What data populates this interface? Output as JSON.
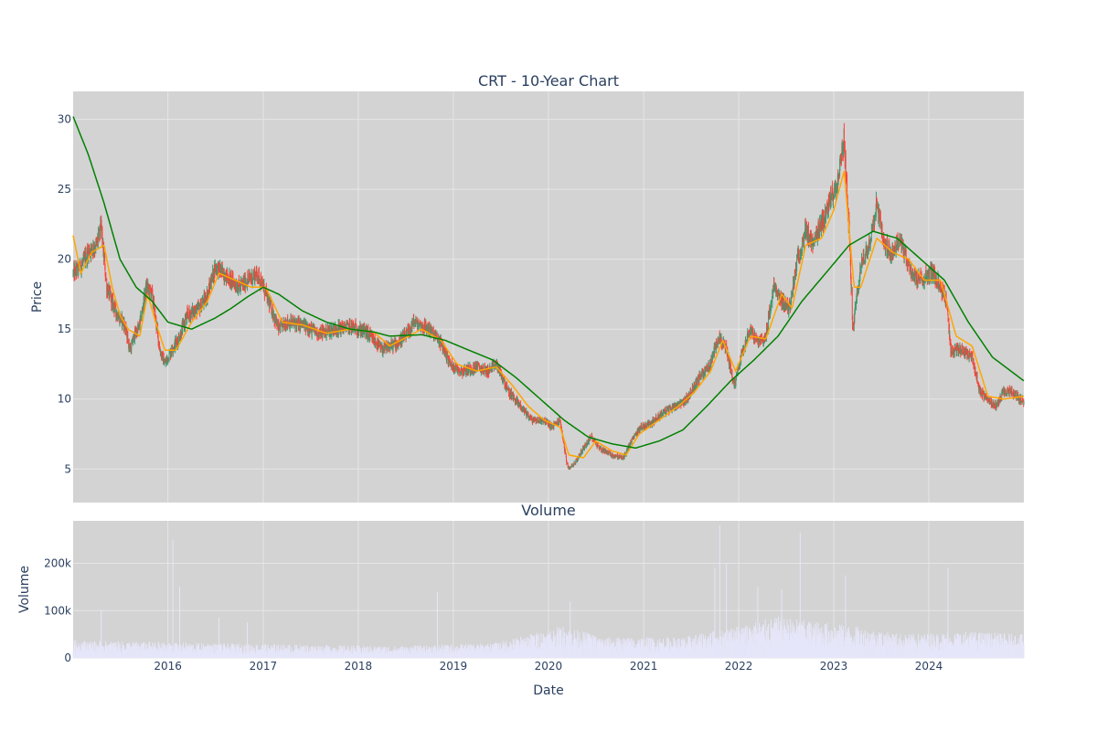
{
  "chart_data": [
    {
      "type": "candlestick",
      "title": "CRT - 10-Year Chart",
      "ylabel": "Price",
      "ylim": [
        2.6,
        32.0
      ],
      "xlim": [
        "2015-01-02",
        "2024-12-31"
      ],
      "yticks": [
        5,
        10,
        15,
        20,
        25,
        30
      ],
      "xticks": [
        "2016",
        "2017",
        "2018",
        "2019",
        "2020",
        "2021",
        "2022",
        "2023",
        "2024"
      ],
      "grid": true,
      "colors": {
        "background": "#d3d3d3",
        "grid": "#e6e6e6",
        "increasing": "#3d9970",
        "decreasing": "#ff4136",
        "ma_short": "#ffa500",
        "ma_long": "#008000"
      },
      "close_anchors": [
        [
          "2015-01-02",
          19.0
        ],
        [
          "2015-02-01",
          19.5
        ],
        [
          "2015-03-01",
          20.5
        ],
        [
          "2015-04-01",
          21.0
        ],
        [
          "2015-04-20",
          22.3
        ],
        [
          "2015-05-10",
          18.0
        ],
        [
          "2015-06-01",
          17.0
        ],
        [
          "2015-06-20",
          16.0
        ],
        [
          "2015-07-15",
          15.5
        ],
        [
          "2015-08-10",
          13.5
        ],
        [
          "2015-08-25",
          14.5
        ],
        [
          "2015-09-15",
          15.3
        ],
        [
          "2015-10-10",
          18.0
        ],
        [
          "2015-11-01",
          17.5
        ],
        [
          "2015-12-01",
          13.5
        ],
        [
          "2015-12-20",
          12.5
        ],
        [
          "2016-01-15",
          13.5
        ],
        [
          "2016-02-15",
          14.5
        ],
        [
          "2016-03-15",
          16.0
        ],
        [
          "2016-05-01",
          16.5
        ],
        [
          "2016-06-01",
          17.5
        ],
        [
          "2016-07-01",
          19.5
        ],
        [
          "2016-08-01",
          19.0
        ],
        [
          "2016-09-01",
          18.5
        ],
        [
          "2016-10-01",
          18.0
        ],
        [
          "2016-11-01",
          18.5
        ],
        [
          "2016-12-10",
          19.0
        ],
        [
          "2017-01-01",
          18.0
        ],
        [
          "2017-02-01",
          16.5
        ],
        [
          "2017-03-01",
          15.0
        ],
        [
          "2017-04-01",
          15.5
        ],
        [
          "2017-06-01",
          15.3
        ],
        [
          "2017-08-01",
          14.7
        ],
        [
          "2017-10-01",
          15.0
        ],
        [
          "2017-12-01",
          15.2
        ],
        [
          "2018-02-01",
          14.8
        ],
        [
          "2018-04-01",
          13.5
        ],
        [
          "2018-06-01",
          14.0
        ],
        [
          "2018-07-15",
          14.8
        ],
        [
          "2018-08-01",
          15.5
        ],
        [
          "2018-10-01",
          15.0
        ],
        [
          "2018-11-15",
          14.0
        ],
        [
          "2018-12-20",
          12.5
        ],
        [
          "2019-02-01",
          12.0
        ],
        [
          "2019-04-01",
          12.3
        ],
        [
          "2019-05-15",
          12.0
        ],
        [
          "2019-06-15",
          12.5
        ],
        [
          "2019-08-01",
          10.5
        ],
        [
          "2019-09-15",
          9.5
        ],
        [
          "2019-11-01",
          8.5
        ],
        [
          "2019-12-15",
          8.5
        ],
        [
          "2020-01-15",
          8.0
        ],
        [
          "2020-02-15",
          8.5
        ],
        [
          "2020-03-15",
          5.0
        ],
        [
          "2020-04-15",
          5.5
        ],
        [
          "2020-05-15",
          6.5
        ],
        [
          "2020-06-15",
          7.3
        ],
        [
          "2020-07-15",
          6.5
        ],
        [
          "2020-09-01",
          6.0
        ],
        [
          "2020-10-15",
          5.8
        ],
        [
          "2020-11-15",
          7.0
        ],
        [
          "2020-12-20",
          8.0
        ],
        [
          "2021-02-01",
          8.3
        ],
        [
          "2021-03-15",
          9.0
        ],
        [
          "2021-05-01",
          9.5
        ],
        [
          "2021-06-15",
          10.0
        ],
        [
          "2021-08-01",
          11.5
        ],
        [
          "2021-09-15",
          12.5
        ],
        [
          "2021-10-15",
          14.5
        ],
        [
          "2021-11-15",
          13.5
        ],
        [
          "2021-12-15",
          11.0
        ],
        [
          "2022-01-15",
          13.5
        ],
        [
          "2022-02-15",
          15.0
        ],
        [
          "2022-03-15",
          14.0
        ],
        [
          "2022-04-15",
          14.5
        ],
        [
          "2022-05-15",
          18.0
        ],
        [
          "2022-06-15",
          17.0
        ],
        [
          "2022-07-15",
          16.5
        ],
        [
          "2022-08-15",
          20.0
        ],
        [
          "2022-09-15",
          22.0
        ],
        [
          "2022-10-15",
          21.0
        ],
        [
          "2022-11-15",
          22.5
        ],
        [
          "2022-12-15",
          24.0
        ],
        [
          "2023-01-15",
          25.5
        ],
        [
          "2023-02-10",
          28.5
        ],
        [
          "2023-03-01",
          22.0
        ],
        [
          "2023-03-15",
          15.0
        ],
        [
          "2023-04-15",
          19.5
        ],
        [
          "2023-05-15",
          21.0
        ],
        [
          "2023-06-15",
          24.0
        ],
        [
          "2023-07-15",
          21.0
        ],
        [
          "2023-08-15",
          20.5
        ],
        [
          "2023-09-15",
          21.5
        ],
        [
          "2023-10-15",
          19.5
        ],
        [
          "2023-11-15",
          18.5
        ],
        [
          "2024-01-15",
          19.0
        ],
        [
          "2024-02-15",
          18.0
        ],
        [
          "2024-03-10",
          17.0
        ],
        [
          "2024-03-25",
          13.5
        ],
        [
          "2024-05-15",
          13.5
        ],
        [
          "2024-06-15",
          13.0
        ],
        [
          "2024-07-15",
          10.5
        ],
        [
          "2024-08-15",
          10.0
        ],
        [
          "2024-09-15",
          9.5
        ],
        [
          "2024-10-15",
          10.5
        ],
        [
          "2024-11-15",
          10.5
        ],
        [
          "2024-12-31",
          9.8
        ]
      ],
      "ma_short_anchors": [
        [
          "2015-01-02",
          21.7
        ],
        [
          "2015-02-01",
          19.0
        ],
        [
          "2015-03-15",
          20.5
        ],
        [
          "2015-05-01",
          21.0
        ],
        [
          "2015-06-01",
          18.0
        ],
        [
          "2015-07-01",
          16.0
        ],
        [
          "2015-08-01",
          15.0
        ],
        [
          "2015-09-15",
          14.5
        ],
        [
          "2015-10-15",
          17.5
        ],
        [
          "2015-11-15",
          15.5
        ],
        [
          "2015-12-20",
          13.5
        ],
        [
          "2016-02-01",
          13.5
        ],
        [
          "2016-04-01",
          15.5
        ],
        [
          "2016-06-01",
          17.0
        ],
        [
          "2016-07-15",
          19.0
        ],
        [
          "2016-09-15",
          18.5
        ],
        [
          "2016-11-15",
          18.0
        ],
        [
          "2017-01-10",
          18.0
        ],
        [
          "2017-03-15",
          15.5
        ],
        [
          "2017-06-01",
          15.3
        ],
        [
          "2017-09-01",
          14.7
        ],
        [
          "2017-12-01",
          15.0
        ],
        [
          "2018-03-01",
          14.8
        ],
        [
          "2018-05-01",
          13.8
        ],
        [
          "2018-07-15",
          14.5
        ],
        [
          "2018-09-01",
          15.0
        ],
        [
          "2018-11-15",
          14.2
        ],
        [
          "2019-01-15",
          12.5
        ],
        [
          "2019-04-01",
          12.0
        ],
        [
          "2019-06-15",
          12.3
        ],
        [
          "2019-08-15",
          11.0
        ],
        [
          "2019-10-15",
          9.5
        ],
        [
          "2019-12-15",
          8.5
        ],
        [
          "2020-02-15",
          8.0
        ],
        [
          "2020-03-20",
          6.0
        ],
        [
          "2020-05-15",
          5.8
        ],
        [
          "2020-07-01",
          7.0
        ],
        [
          "2020-09-01",
          6.3
        ],
        [
          "2020-10-25",
          6.0
        ],
        [
          "2020-12-15",
          7.5
        ],
        [
          "2021-03-01",
          8.5
        ],
        [
          "2021-05-15",
          9.5
        ],
        [
          "2021-07-15",
          10.5
        ],
        [
          "2021-09-15",
          12.0
        ],
        [
          "2021-11-01",
          14.2
        ],
        [
          "2021-12-20",
          12.0
        ],
        [
          "2022-02-15",
          14.5
        ],
        [
          "2022-04-15",
          14.3
        ],
        [
          "2022-06-15",
          17.5
        ],
        [
          "2022-07-25",
          16.5
        ],
        [
          "2022-09-15",
          21.0
        ],
        [
          "2022-11-15",
          21.5
        ],
        [
          "2023-01-01",
          23.5
        ],
        [
          "2023-02-10",
          26.3
        ],
        [
          "2023-03-20",
          18.0
        ],
        [
          "2023-04-15",
          18.0
        ],
        [
          "2023-06-15",
          21.5
        ],
        [
          "2023-08-15",
          20.5
        ],
        [
          "2023-10-15",
          20.0
        ],
        [
          "2023-12-15",
          18.5
        ],
        [
          "2024-02-15",
          18.5
        ],
        [
          "2024-04-15",
          14.5
        ],
        [
          "2024-06-15",
          13.8
        ],
        [
          "2024-08-15",
          10.2
        ],
        [
          "2024-10-15",
          10.0
        ],
        [
          "2024-12-31",
          10.2
        ]
      ],
      "ma_long_anchors": [
        [
          "2015-01-02",
          30.2
        ],
        [
          "2015-03-01",
          27.5
        ],
        [
          "2015-05-01",
          24.0
        ],
        [
          "2015-07-01",
          20.0
        ],
        [
          "2015-09-01",
          18.0
        ],
        [
          "2015-11-01",
          17.0
        ],
        [
          "2016-01-01",
          15.5
        ],
        [
          "2016-04-01",
          15.0
        ],
        [
          "2016-07-01",
          15.8
        ],
        [
          "2016-09-01",
          16.5
        ],
        [
          "2016-11-01",
          17.3
        ],
        [
          "2017-01-01",
          18.0
        ],
        [
          "2017-03-01",
          17.5
        ],
        [
          "2017-06-01",
          16.3
        ],
        [
          "2017-09-01",
          15.5
        ],
        [
          "2017-12-01",
          15.0
        ],
        [
          "2018-03-01",
          14.8
        ],
        [
          "2018-05-01",
          14.5
        ],
        [
          "2018-09-01",
          14.6
        ],
        [
          "2018-12-01",
          14.2
        ],
        [
          "2019-03-01",
          13.5
        ],
        [
          "2019-06-01",
          12.8
        ],
        [
          "2019-09-01",
          11.5
        ],
        [
          "2019-12-01",
          10.0
        ],
        [
          "2020-03-01",
          8.5
        ],
        [
          "2020-06-01",
          7.3
        ],
        [
          "2020-09-01",
          6.8
        ],
        [
          "2020-12-01",
          6.5
        ],
        [
          "2021-03-01",
          7.0
        ],
        [
          "2021-06-01",
          7.8
        ],
        [
          "2021-09-01",
          9.5
        ],
        [
          "2021-12-01",
          11.3
        ],
        [
          "2022-03-01",
          12.8
        ],
        [
          "2022-06-01",
          14.5
        ],
        [
          "2022-09-01",
          17.0
        ],
        [
          "2022-12-01",
          19.0
        ],
        [
          "2023-03-01",
          21.0
        ],
        [
          "2023-06-01",
          22.0
        ],
        [
          "2023-09-01",
          21.5
        ],
        [
          "2023-12-01",
          20.0
        ],
        [
          "2024-03-01",
          18.5
        ],
        [
          "2024-06-01",
          15.5
        ],
        [
          "2024-09-01",
          13.0
        ],
        [
          "2024-12-31",
          11.3
        ]
      ]
    },
    {
      "type": "bar",
      "title": "Volume",
      "xlabel": "Date",
      "ylabel": "Volume",
      "ylim": [
        0,
        290000
      ],
      "yticks": [
        0,
        100000,
        200000
      ],
      "ytick_labels": [
        "0",
        "100k",
        "200k"
      ],
      "xticks": [
        "2016",
        "2017",
        "2018",
        "2019",
        "2020",
        "2021",
        "2022",
        "2023",
        "2024"
      ],
      "grid": true,
      "colors": {
        "background": "#d3d3d3",
        "grid": "#e6e6e6",
        "bar": "#e6e6fa"
      },
      "base_level": [
        [
          "2015-01-02",
          30000
        ],
        [
          "2016-06-01",
          25000
        ],
        [
          "2018-06-01",
          20000
        ],
        [
          "2019-06-01",
          25000
        ],
        [
          "2020-03-01",
          55000
        ],
        [
          "2020-08-01",
          35000
        ],
        [
          "2021-06-01",
          35000
        ],
        [
          "2022-06-01",
          70000
        ],
        [
          "2023-03-01",
          55000
        ],
        [
          "2023-10-01",
          40000
        ],
        [
          "2024-06-01",
          45000
        ],
        [
          "2024-12-31",
          40000
        ]
      ],
      "spikes": [
        [
          "2015-04-20",
          100000
        ],
        [
          "2015-11-15",
          120000
        ],
        [
          "2016-01-20",
          250000
        ],
        [
          "2016-02-15",
          150000
        ],
        [
          "2016-07-15",
          85000
        ],
        [
          "2016-11-01",
          75000
        ],
        [
          "2018-11-01",
          140000
        ],
        [
          "2019-02-10",
          105000
        ],
        [
          "2020-03-15",
          155000
        ],
        [
          "2020-03-25",
          120000
        ],
        [
          "2021-10-01",
          190000
        ],
        [
          "2021-10-20",
          280000
        ],
        [
          "2021-11-15",
          200000
        ],
        [
          "2022-03-15",
          150000
        ],
        [
          "2022-05-01",
          155000
        ],
        [
          "2022-06-15",
          145000
        ],
        [
          "2022-08-25",
          265000
        ],
        [
          "2022-09-10",
          160000
        ],
        [
          "2023-02-15",
          175000
        ],
        [
          "2023-01-15",
          150000
        ],
        [
          "2023-06-10",
          160000
        ],
        [
          "2024-03-15",
          190000
        ],
        [
          "2024-06-15",
          130000
        ],
        [
          "2024-09-15",
          125000
        ]
      ]
    }
  ]
}
